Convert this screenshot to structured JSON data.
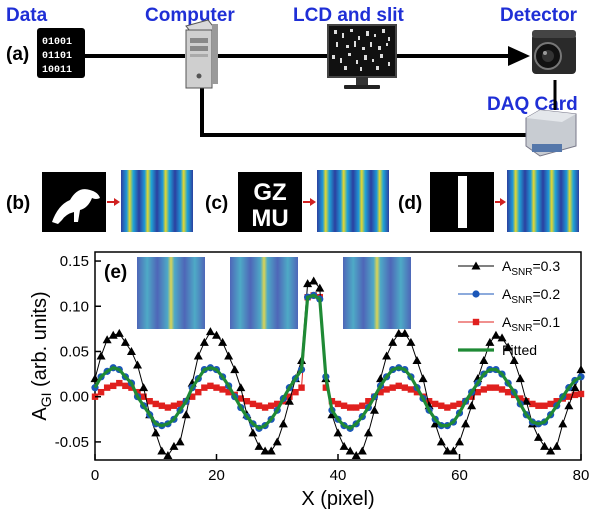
{
  "schematic": {
    "panel_label": "(a)",
    "labels": {
      "data": "Data",
      "computer": "Computer",
      "lcd": "LCD and slit",
      "detector": "Detector",
      "daq": "DAQ Card"
    },
    "data_icon_lines": [
      "01001",
      "01101",
      "10011"
    ]
  },
  "objects": [
    {
      "panel_label": "(b)",
      "object": "animal-silhouette"
    },
    {
      "panel_label": "(c)",
      "object": "letters",
      "lines": [
        "GZ",
        "MU"
      ]
    },
    {
      "panel_label": "(d)",
      "object": "vertical-slit"
    }
  ],
  "chart_data": {
    "type": "line",
    "panel_label": "(e)",
    "xlabel": "X (pixel)",
    "ylabel": "A",
    "ylabel_sub": "GI",
    "ylabel_suffix": " (arb. units)",
    "xlim": [
      0,
      80
    ],
    "ylim": [
      -0.07,
      0.16
    ],
    "xticks": [
      0,
      20,
      40,
      60,
      80
    ],
    "yticks": [
      -0.05,
      0.0,
      0.05,
      0.1,
      0.15
    ],
    "ytick_labels": [
      "-0.05",
      "0.00",
      "0.05",
      "0.10",
      "0.15"
    ],
    "legend_position": "top-right",
    "x": [
      0,
      1,
      2,
      3,
      4,
      5,
      6,
      7,
      8,
      9,
      10,
      11,
      12,
      13,
      14,
      15,
      16,
      17,
      18,
      19,
      20,
      21,
      22,
      23,
      24,
      25,
      26,
      27,
      28,
      29,
      30,
      31,
      32,
      33,
      34,
      35,
      36,
      37,
      38,
      39,
      40,
      41,
      42,
      43,
      44,
      45,
      46,
      47,
      48,
      49,
      50,
      51,
      52,
      53,
      54,
      55,
      56,
      57,
      58,
      59,
      60,
      61,
      62,
      63,
      64,
      65,
      66,
      67,
      68,
      69,
      70,
      71,
      72,
      73,
      74,
      75,
      76,
      77,
      78,
      79,
      80
    ],
    "series": [
      {
        "legend_main": "A",
        "legend_sub": "SNR",
        "legend_suffix": "=0.3",
        "color": "#000000",
        "marker": "triangle",
        "values": [
          0.02,
          0.045,
          0.063,
          0.068,
          0.07,
          0.06,
          0.05,
          0.035,
          0.01,
          -0.02,
          -0.04,
          -0.06,
          -0.065,
          -0.055,
          -0.05,
          -0.02,
          0.015,
          0.045,
          0.06,
          0.072,
          0.068,
          0.06,
          0.045,
          0.03,
          0.01,
          -0.02,
          -0.04,
          -0.055,
          -0.06,
          -0.06,
          -0.05,
          -0.03,
          -0.005,
          0.02,
          0.04,
          0.125,
          0.128,
          0.12,
          0.02,
          -0.02,
          -0.04,
          -0.055,
          -0.06,
          -0.065,
          -0.06,
          -0.04,
          -0.015,
          0.02,
          0.045,
          0.06,
          0.07,
          0.07,
          0.06,
          0.04,
          0.02,
          -0.01,
          -0.03,
          -0.05,
          -0.06,
          -0.06,
          -0.05,
          -0.03,
          -0.01,
          0.02,
          0.04,
          0.06,
          0.068,
          0.065,
          0.055,
          0.04,
          0.02,
          -0.005,
          -0.03,
          -0.045,
          -0.055,
          -0.06,
          -0.055,
          -0.03,
          -0.01,
          0.01,
          0.03
        ]
      },
      {
        "legend_main": "A",
        "legend_sub": "SNR",
        "legend_suffix": "=0.2",
        "color": "#1a56b8",
        "marker": "circle",
        "values": [
          0.01,
          0.022,
          0.028,
          0.032,
          0.03,
          0.022,
          0.015,
          0.0,
          -0.01,
          -0.02,
          -0.03,
          -0.032,
          -0.03,
          -0.025,
          -0.015,
          -0.005,
          0.01,
          0.02,
          0.03,
          0.032,
          0.03,
          0.022,
          0.012,
          0.0,
          -0.012,
          -0.022,
          -0.03,
          -0.035,
          -0.032,
          -0.025,
          -0.015,
          -0.002,
          0.01,
          0.02,
          0.03,
          0.11,
          0.112,
          0.108,
          0.022,
          -0.015,
          -0.025,
          -0.032,
          -0.035,
          -0.03,
          -0.022,
          -0.012,
          0.0,
          0.012,
          0.022,
          0.03,
          0.032,
          0.03,
          0.022,
          0.01,
          -0.002,
          -0.015,
          -0.025,
          -0.032,
          -0.032,
          -0.028,
          -0.018,
          -0.005,
          0.005,
          0.015,
          0.025,
          0.03,
          0.03,
          0.025,
          0.015,
          0.005,
          -0.008,
          -0.02,
          -0.028,
          -0.03,
          -0.028,
          -0.02,
          -0.01,
          0.0,
          0.01,
          0.018,
          0.022
        ]
      },
      {
        "legend_main": "A",
        "legend_sub": "SNR",
        "legend_suffix": "=0.1",
        "color": "#e0201e",
        "marker": "square",
        "values": [
          0.0,
          0.005,
          0.01,
          0.012,
          0.015,
          0.012,
          0.01,
          0.005,
          0.0,
          -0.005,
          -0.008,
          -0.01,
          -0.012,
          -0.01,
          -0.008,
          -0.005,
          0.0,
          0.005,
          0.01,
          0.012,
          0.01,
          0.008,
          0.005,
          0.002,
          -0.002,
          -0.005,
          -0.008,
          -0.01,
          -0.012,
          -0.01,
          -0.008,
          -0.005,
          0.0,
          0.005,
          0.01,
          0.11,
          0.112,
          0.11,
          0.01,
          -0.005,
          -0.008,
          -0.01,
          -0.012,
          -0.012,
          -0.01,
          -0.005,
          0.0,
          0.005,
          0.008,
          0.01,
          0.012,
          0.01,
          0.008,
          0.005,
          0.0,
          -0.005,
          -0.008,
          -0.01,
          -0.012,
          -0.01,
          -0.008,
          -0.005,
          0.0,
          0.005,
          0.008,
          0.01,
          0.01,
          0.008,
          0.005,
          0.002,
          -0.002,
          -0.005,
          -0.008,
          -0.01,
          -0.01,
          -0.008,
          -0.005,
          -0.002,
          0.0,
          0.002,
          0.003
        ]
      },
      {
        "legend_main": "Fitted",
        "legend_sub": "",
        "legend_suffix": "",
        "color": "#1f8a35",
        "marker": "none",
        "fitted": true
      }
    ]
  }
}
